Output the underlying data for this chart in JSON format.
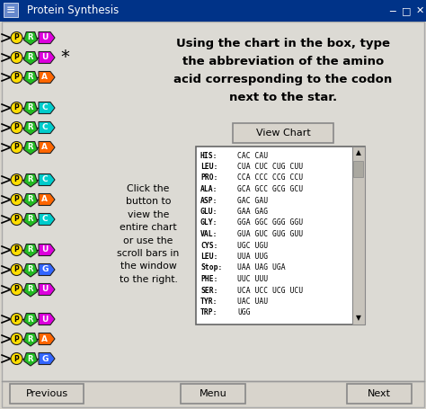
{
  "title": "Protein Synthesis",
  "bg_color": "#d8d4cc",
  "content_bg": "#dcdad4",
  "main_text_line1": "Using the chart in the box, type",
  "main_text_line2": "the abbreviation of the amino",
  "main_text_line3": "acid corresponding to the codon",
  "main_text_line4": "next to the star.",
  "side_text": "Click the\nbutton to\nview the\nentire chart\nor use the\nscroll bars in\nthe window\nto the right.",
  "view_chart_btn": "View Chart",
  "buttons": [
    "Previous",
    "Menu",
    "Next"
  ],
  "codon_table": [
    [
      "HIS:",
      "CAC CAU"
    ],
    [
      "LEU:",
      "CUA CUC CUG CUU"
    ],
    [
      "PRO:",
      "CCA CCC CCG CCU"
    ],
    [
      "ALA:",
      "GCA GCC GCG GCU"
    ],
    [
      "ASP:",
      "GAC GAU"
    ],
    [
      "GLU:",
      "GAA GAG"
    ],
    [
      "GLY:",
      "GGA GGC GGG GGU"
    ],
    [
      "VAL:",
      "GUA GUC GUG GUU"
    ],
    [
      "CYS:",
      "UGC UGU"
    ],
    [
      "LEU:",
      "UUA UUG"
    ],
    [
      "Stop:",
      "UAA UAG UGA"
    ],
    [
      "PHE:",
      "UUC UUU"
    ],
    [
      "SER:",
      "UCA UCC UCG UCU"
    ],
    [
      "TYR:",
      "UAC UAU"
    ],
    [
      "TRP:",
      "UGG"
    ]
  ],
  "nucleotide_groups": [
    {
      "bases": [
        "U",
        "U",
        "A"
      ],
      "base_colors": [
        "#dd00dd",
        "#dd00dd",
        "#ff6600"
      ],
      "star": true
    },
    {
      "bases": [
        "C",
        "C",
        "A"
      ],
      "base_colors": [
        "#00cccc",
        "#00cccc",
        "#ff6600"
      ],
      "star": false
    },
    {
      "bases": [
        "C",
        "A",
        "C"
      ],
      "base_colors": [
        "#00cccc",
        "#ff6600",
        "#00cccc"
      ],
      "star": false
    },
    {
      "bases": [
        "U",
        "G",
        "U"
      ],
      "base_colors": [
        "#dd00dd",
        "#3366ff",
        "#dd00dd"
      ],
      "star": false
    },
    {
      "bases": [
        "U",
        "A",
        "G"
      ],
      "base_colors": [
        "#dd00dd",
        "#ff6600",
        "#3366ff"
      ],
      "star": false
    }
  ],
  "p_color": "#ffdd00",
  "r_color": "#22bb22",
  "titlebar_color": "#003388",
  "titlebar_text_color": "white"
}
